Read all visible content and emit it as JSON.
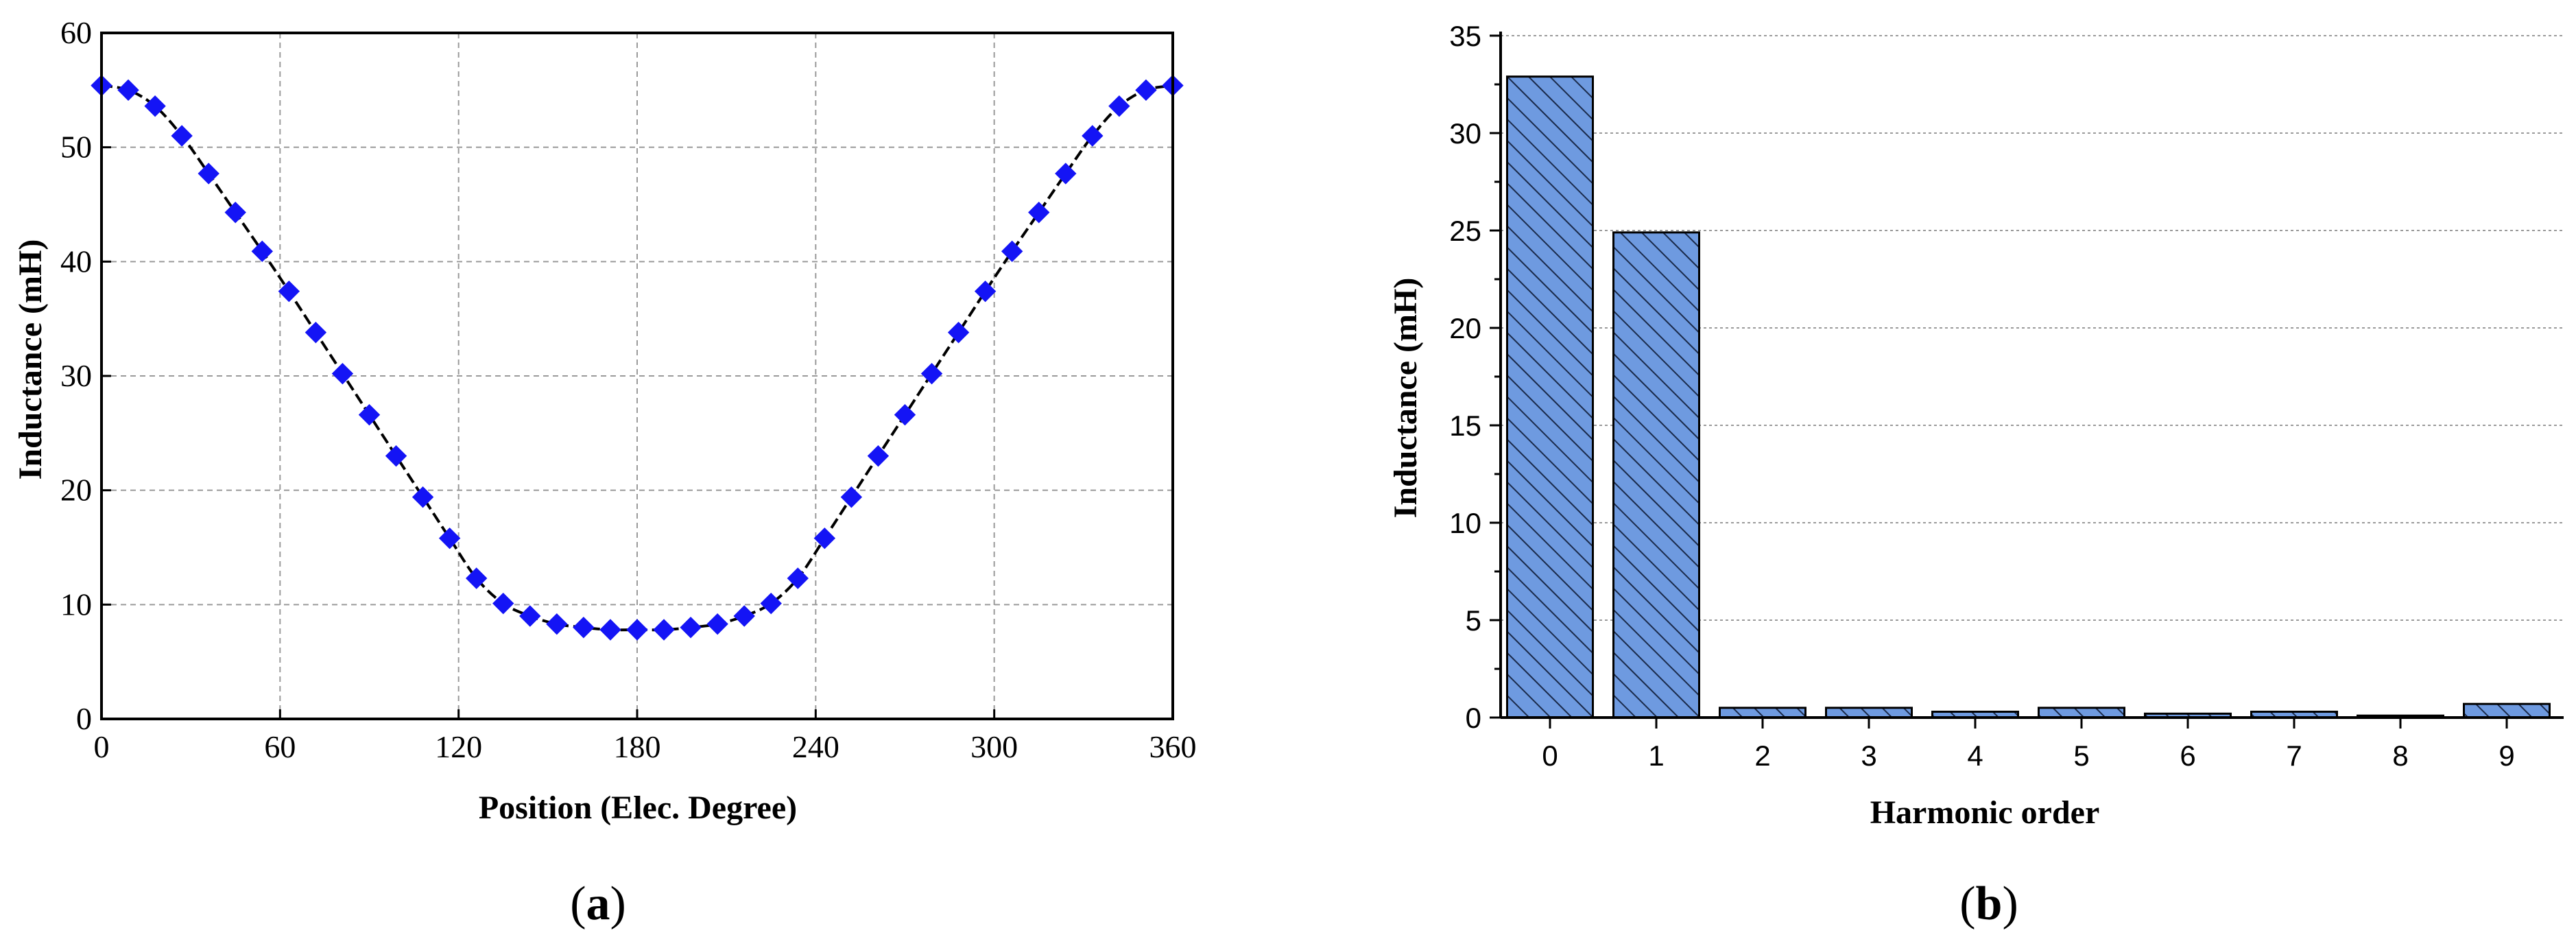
{
  "colors": {
    "marker": "#1414f5",
    "line": "#000000",
    "bar_fill": "#6e9ae0",
    "bar_hatch": "#1a2a4a",
    "grid": "#9a9a9a"
  },
  "panels": {
    "a": {
      "open": "(",
      "letter": "a",
      "close": ")"
    },
    "b": {
      "open": "(",
      "letter": "b",
      "close": ")"
    }
  },
  "chart_data": [
    {
      "type": "line",
      "xlabel": "Position (Elec. Degree)",
      "ylabel": "Inductance (mH)",
      "xlim": [
        0,
        360
      ],
      "ylim": [
        0,
        60
      ],
      "xticks": [
        "0",
        "60",
        "120",
        "180",
        "240",
        "300",
        "360"
      ],
      "yticks": [
        "0",
        "10",
        "20",
        "30",
        "40",
        "50",
        "60"
      ],
      "grid": true,
      "marker": "diamond",
      "x": [
        0,
        9,
        18,
        27,
        36,
        45,
        54,
        63,
        72,
        81,
        90,
        99,
        108,
        117,
        126,
        135,
        144,
        153,
        162,
        171,
        180,
        189,
        198,
        207,
        216,
        225,
        234,
        243,
        252,
        261,
        270,
        279,
        288,
        297,
        306,
        315,
        324,
        333,
        342,
        351,
        360
      ],
      "y": [
        55.4,
        55.0,
        53.6,
        51.0,
        47.7,
        44.3,
        40.9,
        37.4,
        33.8,
        30.2,
        26.6,
        23.0,
        19.4,
        15.8,
        12.3,
        10.1,
        9.0,
        8.3,
        8.0,
        7.8,
        7.8,
        7.8,
        8.0,
        8.3,
        9.0,
        10.1,
        12.3,
        15.8,
        19.4,
        23.0,
        26.6,
        30.2,
        33.8,
        37.4,
        40.9,
        44.3,
        47.7,
        51.0,
        53.6,
        55.0,
        55.4
      ]
    },
    {
      "type": "bar",
      "xlabel": "Harmonic order",
      "ylabel": "Inductance (mH)",
      "ylim": [
        0,
        35
      ],
      "yticks": [
        "0",
        "5",
        "10",
        "15",
        "20",
        "25",
        "30",
        "35"
      ],
      "grid": true,
      "categories": [
        "0",
        "1",
        "2",
        "3",
        "4",
        "5",
        "6",
        "7",
        "8",
        "9"
      ],
      "values": [
        32.9,
        24.9,
        0.5,
        0.5,
        0.3,
        0.5,
        0.2,
        0.3,
        0.1,
        0.7
      ]
    }
  ]
}
